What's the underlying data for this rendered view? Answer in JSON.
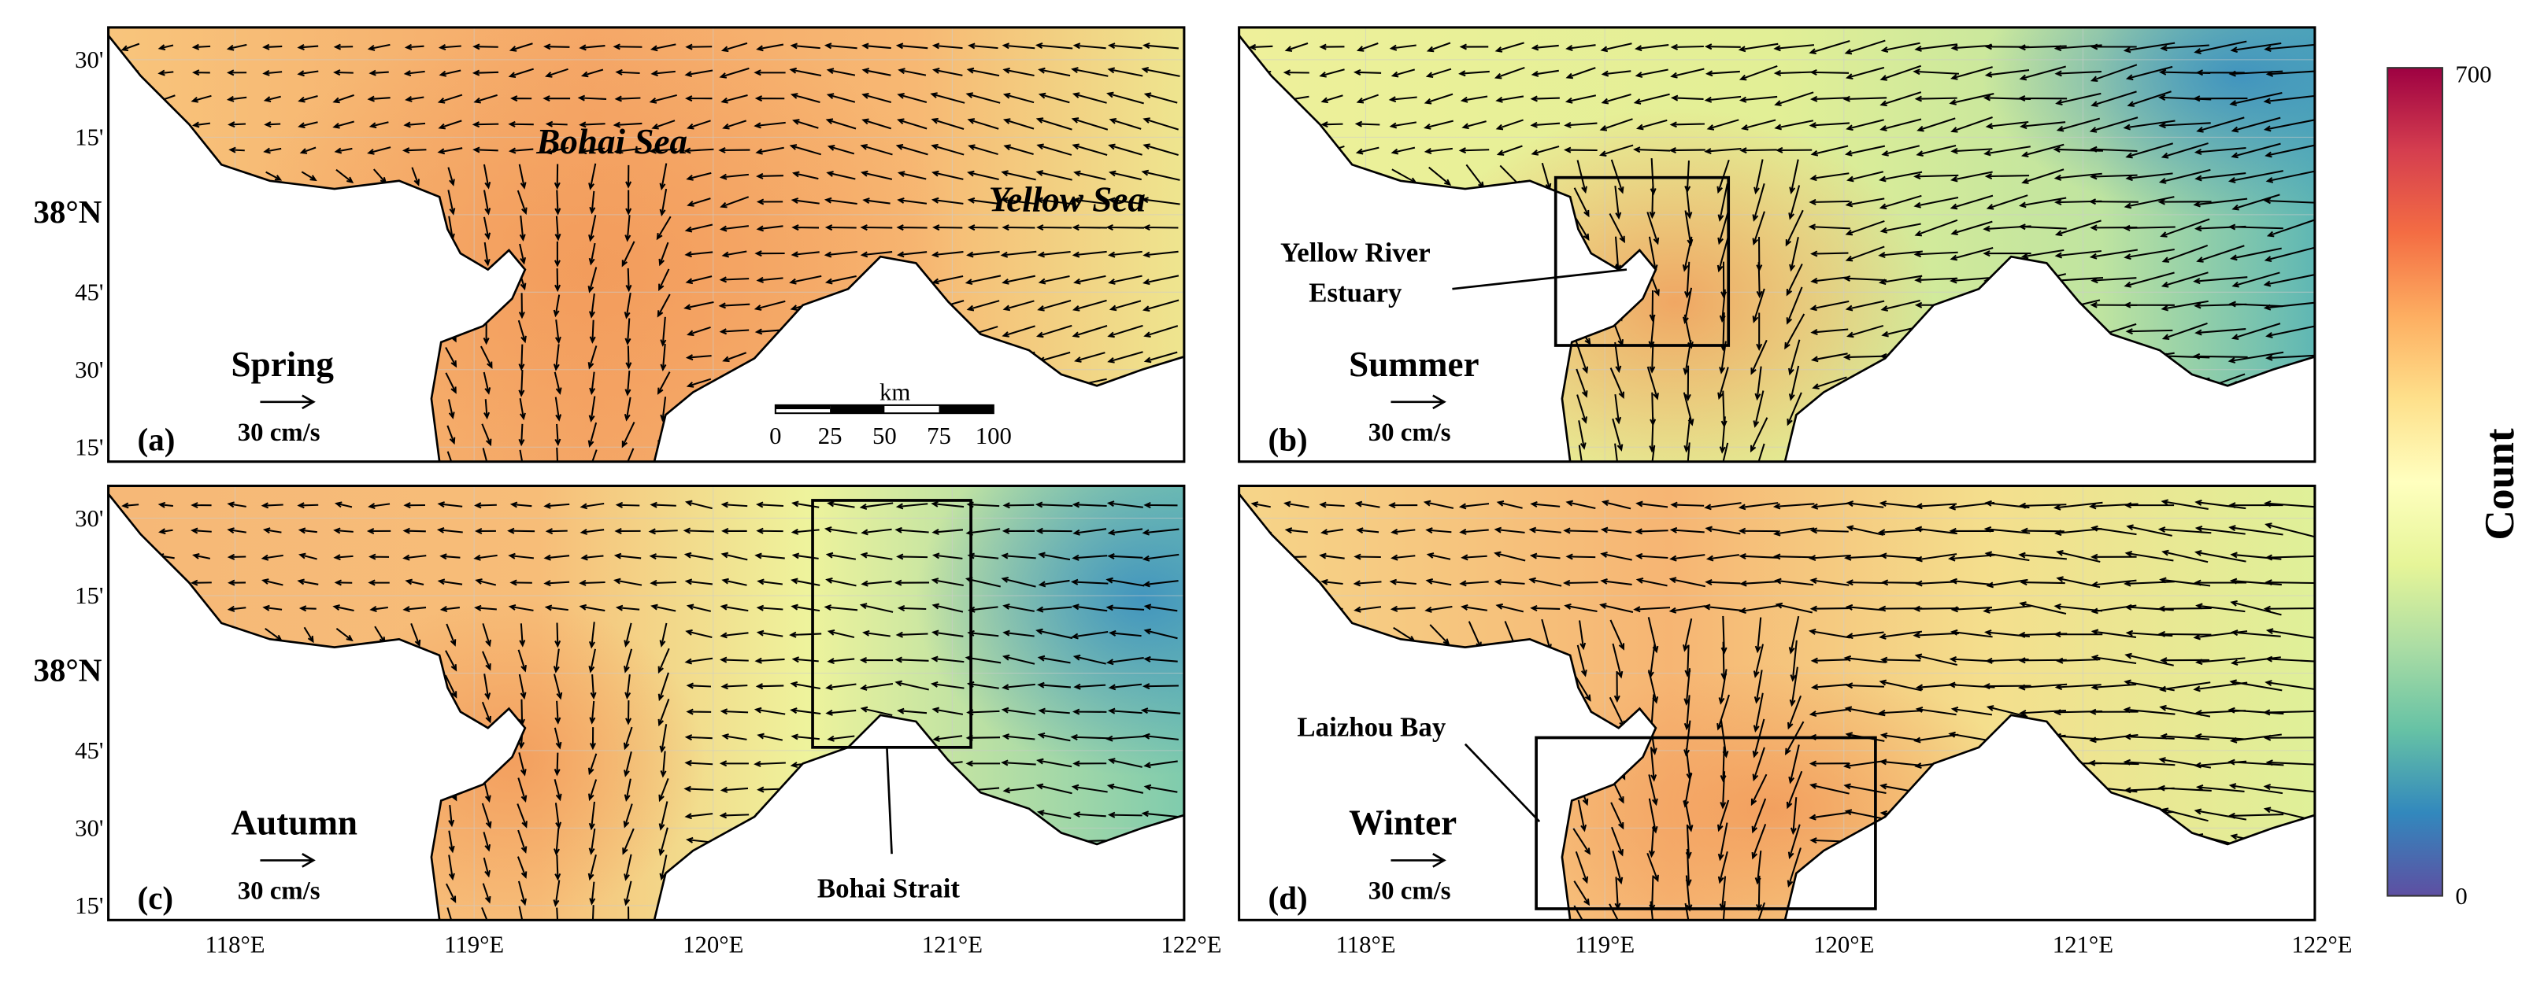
{
  "panels": [
    {
      "label": "(a)",
      "season": "Spring",
      "scale_label": "30 cm/s"
    },
    {
      "label": "(b)",
      "season": "Summer",
      "scale_label": "30 cm/s"
    },
    {
      "label": "(c)",
      "season": "Autumn",
      "scale_label": "30 cm/s"
    },
    {
      "label": "(d)",
      "season": "Winter",
      "scale_label": "30 cm/s"
    }
  ],
  "annotations": {
    "bohai_sea": "Bohai Sea",
    "yellow_sea": "Yellow Sea",
    "estuary": [
      "Yellow River",
      "Estuary"
    ],
    "strait": "Bohai Strait",
    "laizhou": "Laizhou Bay"
  },
  "scale_bar": {
    "unit": "km",
    "ticks": [
      0,
      25,
      50,
      75,
      100
    ]
  },
  "lat_ticks": [
    {
      "value": 38.5,
      "label": "30'"
    },
    {
      "value": 38.25,
      "label": "15'"
    },
    {
      "value": 38,
      "label": "38°N"
    },
    {
      "value": 37.75,
      "label": "45'"
    },
    {
      "value": 37.5,
      "label": "30'"
    },
    {
      "value": 37.25,
      "label": "15'"
    }
  ],
  "lon_ticks": [
    {
      "value": 118,
      "label": "118°E"
    },
    {
      "value": 119,
      "label": "119°E"
    },
    {
      "value": 120,
      "label": "120°E"
    },
    {
      "value": 121,
      "label": "121°E"
    },
    {
      "value": 122,
      "label": "122°E"
    }
  ],
  "colorbar": {
    "title": "Count",
    "max": 700,
    "min": 0
  }
}
